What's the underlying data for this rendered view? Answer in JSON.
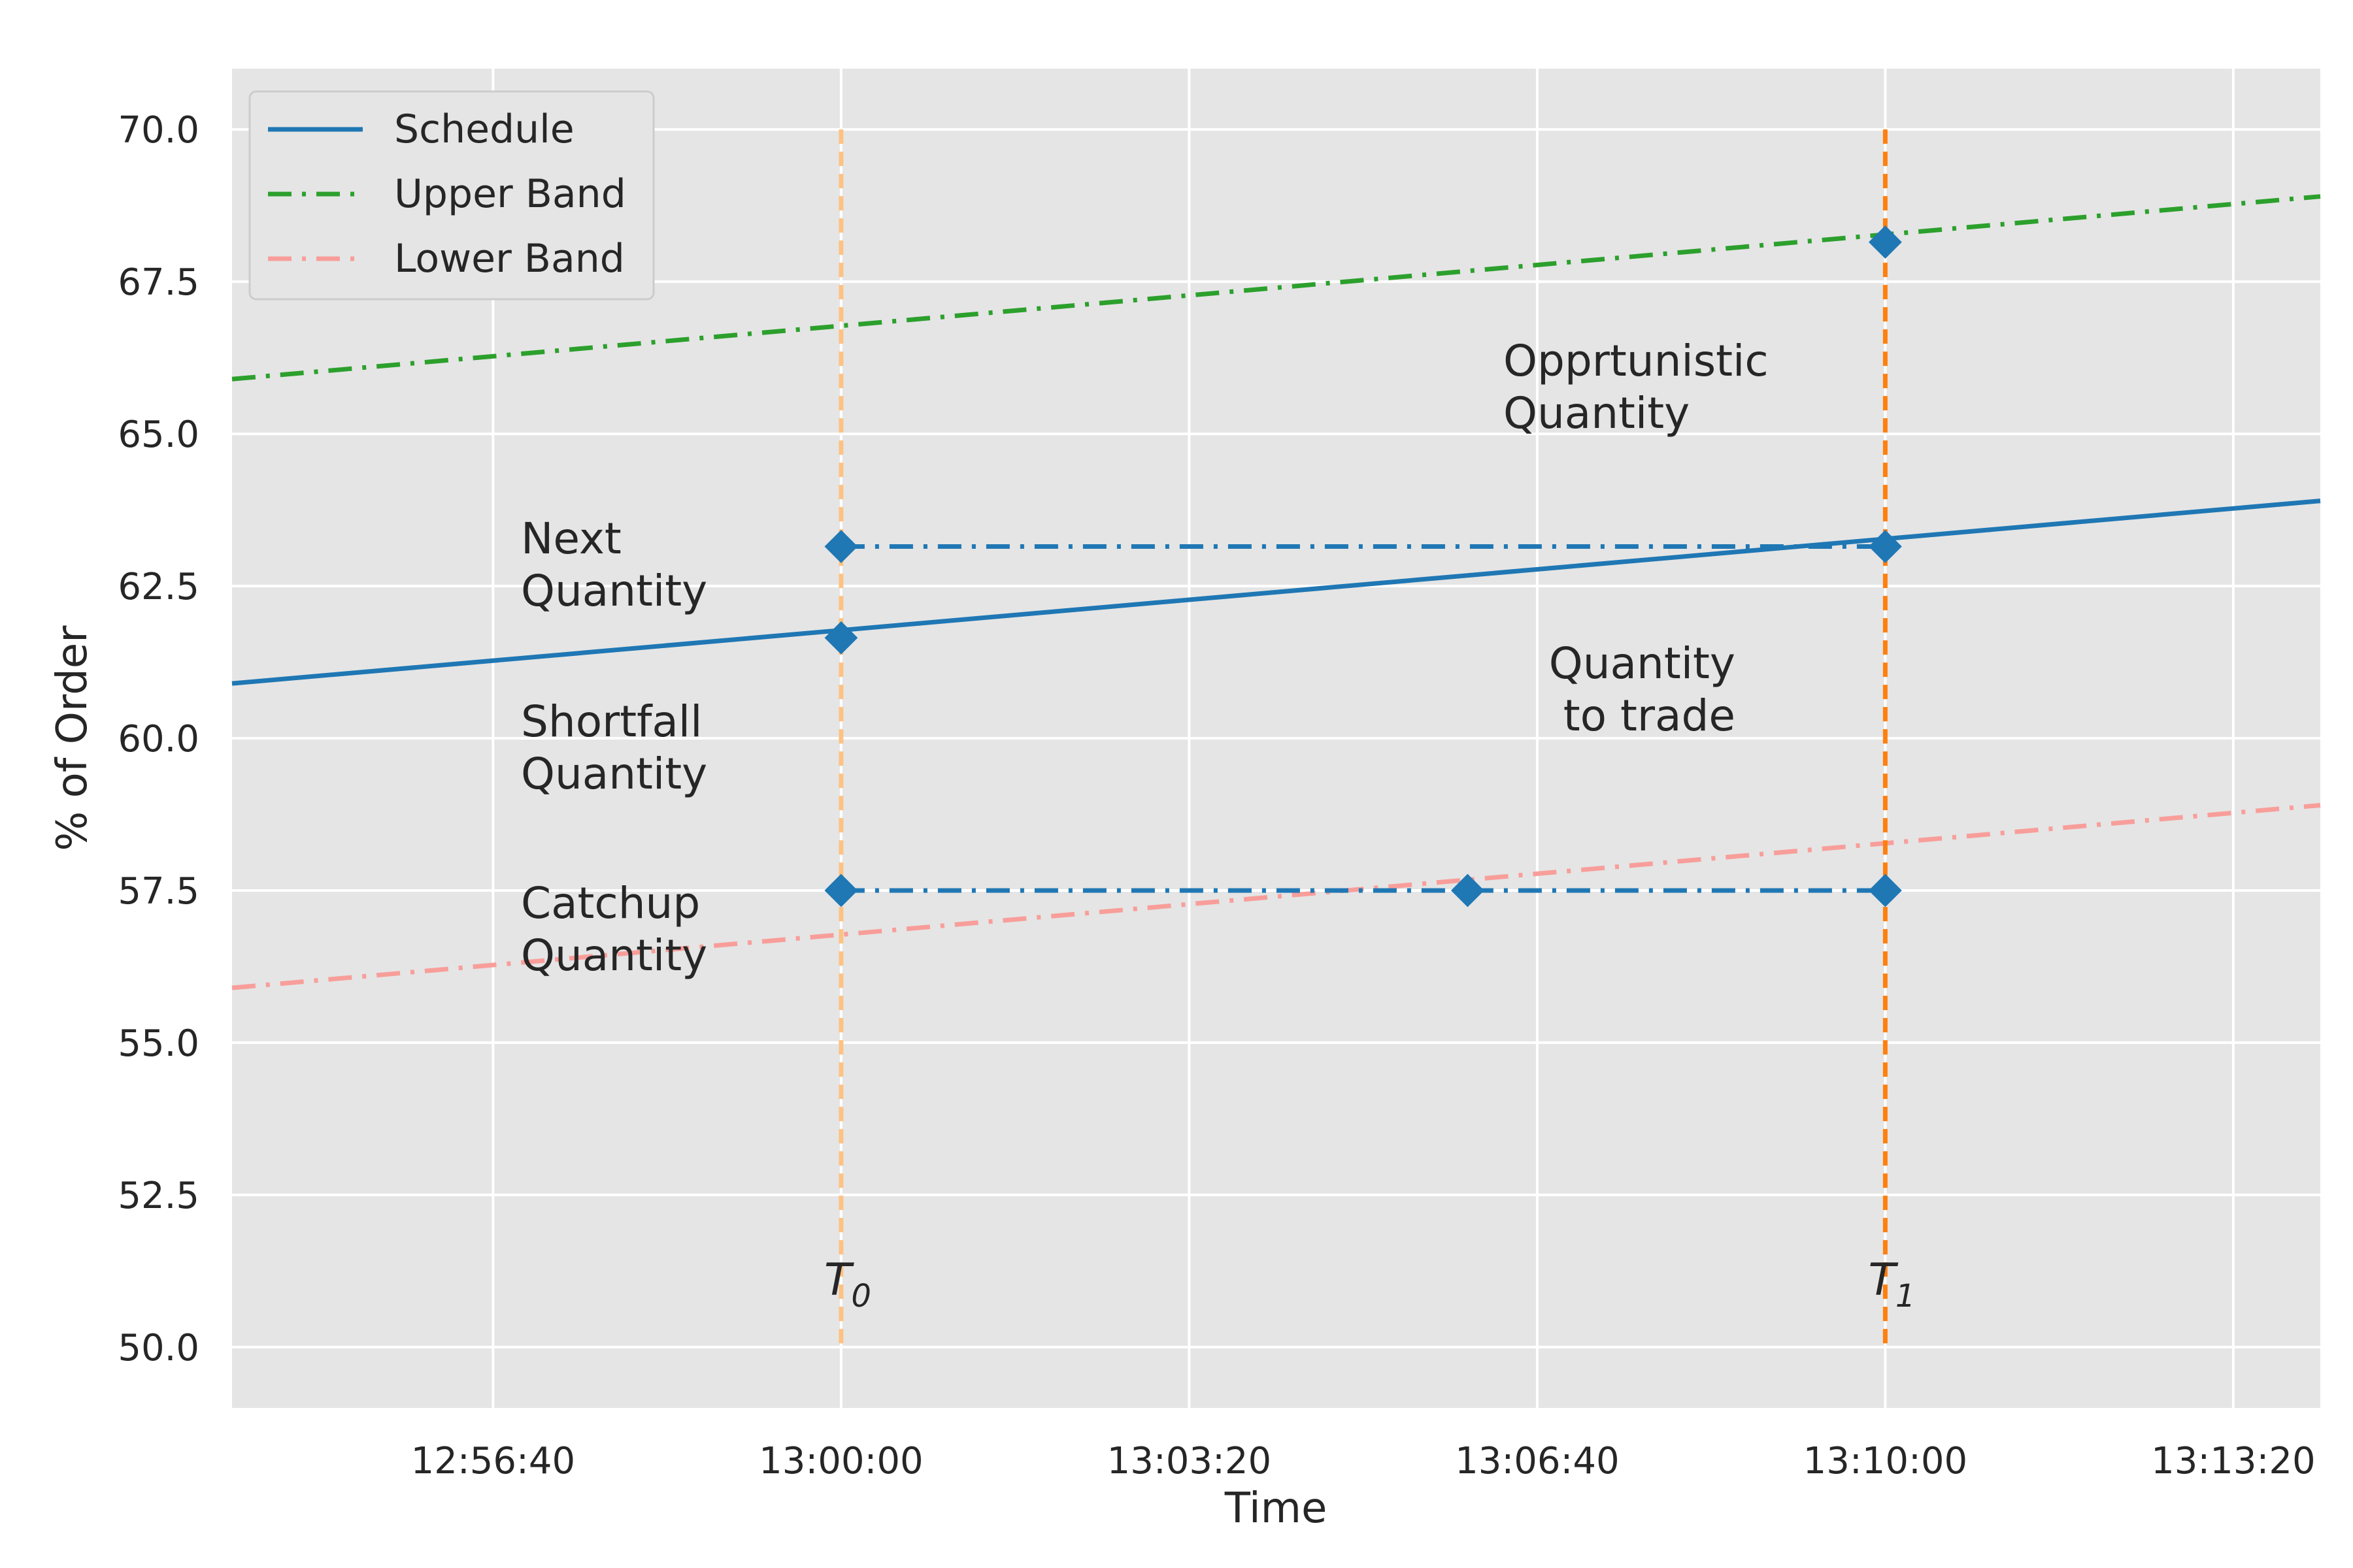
{
  "chart_data": {
    "type": "line",
    "xlabel": "Time",
    "ylabel": "% of Order",
    "x_unit": "time",
    "xlim": [
      "12:54:10",
      "13:14:10"
    ],
    "ylim": [
      49.0,
      71.0
    ],
    "x_ticks": [
      "12:56:40",
      "13:00:00",
      "13:03:20",
      "13:06:40",
      "13:10:00",
      "13:13:20"
    ],
    "y_ticks": [
      "50.0",
      "52.5",
      "55.0",
      "57.5",
      "60.0",
      "62.5",
      "65.0",
      "67.5",
      "70.0"
    ],
    "grid": true,
    "legend_position": "top-left",
    "series": [
      {
        "name": "Schedule",
        "style": "solid",
        "color": "#1f77b4",
        "x": [
          "12:54:10",
          "13:14:10"
        ],
        "y": [
          60.9,
          63.9
        ]
      },
      {
        "name": "Upper Band",
        "style": "dashdot",
        "color": "#2ca02c",
        "x": [
          "12:54:10",
          "13:14:10"
        ],
        "y": [
          65.9,
          68.9
        ]
      },
      {
        "name": "Lower Band",
        "style": "dashdot",
        "color": "#f89e9a",
        "x": [
          "12:54:10",
          "13:14:10"
        ],
        "y": [
          55.9,
          58.9
        ]
      }
    ],
    "segments": [
      {
        "x": [
          "13:00:00",
          "13:10:00"
        ],
        "y": [
          63.15,
          63.15
        ],
        "color": "#1f77b4",
        "style": "dashdot"
      },
      {
        "x": [
          "13:00:00",
          "13:10:00"
        ],
        "y": [
          57.5,
          57.5
        ],
        "color": "#1f77b4",
        "style": "dashdot"
      }
    ],
    "markers": [
      {
        "x": "13:00:00",
        "y": 63.15
      },
      {
        "x": "13:00:00",
        "y": 61.65
      },
      {
        "x": "13:00:00",
        "y": 57.5
      },
      {
        "x": "13:06:00",
        "y": 57.5
      },
      {
        "x": "13:10:00",
        "y": 68.15
      },
      {
        "x": "13:10:00",
        "y": 63.15
      },
      {
        "x": "13:10:00",
        "y": 57.5
      }
    ],
    "vlines": [
      {
        "label": "T",
        "sub": "0",
        "x": "13:00:00",
        "color": "#fdc283"
      },
      {
        "label": "T",
        "sub": "1",
        "x": "13:10:00",
        "color": "#ff7f0e"
      }
    ],
    "annotations": [
      {
        "lines": [
          "Next",
          "Quantity"
        ]
      },
      {
        "lines": [
          "Shortfall",
          "Quantity"
        ]
      },
      {
        "lines": [
          "Catchup",
          "Quantity"
        ]
      },
      {
        "lines": [
          "Opprtunistic",
          "Quantity"
        ]
      },
      {
        "lines": [
          "Quantity",
          "to trade"
        ]
      }
    ]
  }
}
